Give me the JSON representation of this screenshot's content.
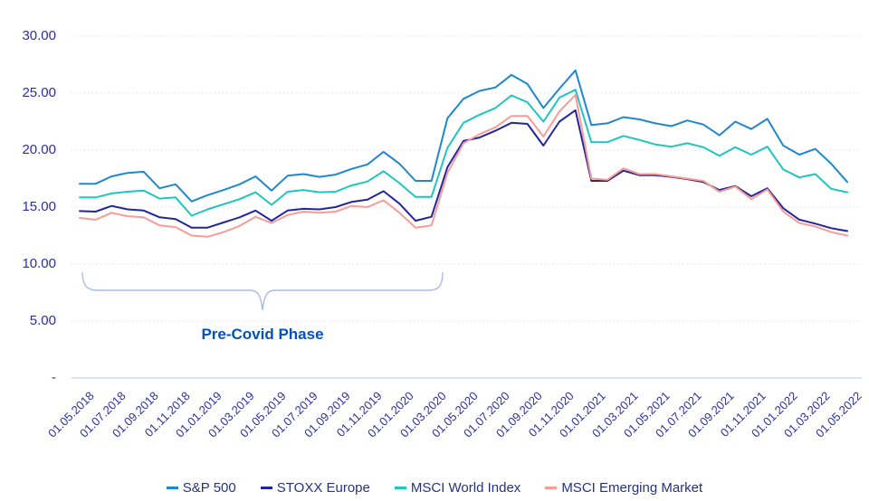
{
  "chart_data": {
    "type": "line",
    "title": "",
    "xlabel": "",
    "ylabel": "",
    "ylim": [
      0,
      30
    ],
    "grid": "horizontal-dotted",
    "legend_position": "bottom-center",
    "x_labels": [
      "01.05.2018",
      "01.07.2018",
      "01.09.2018",
      "01.11.2018",
      "01.01.2019",
      "01.03.2019",
      "01.05.2019",
      "01.07.2019",
      "01.09.2019",
      "01.11.2019",
      "01.01.2020",
      "01.03.2020",
      "01.05.2020",
      "01.07.2020",
      "01.09.2020",
      "01.11.2020",
      "01.01.2021",
      "01.03.2021",
      "01.05.2021",
      "01.07.2021",
      "01.09.2021",
      "01.11.2021",
      "01.01.2022",
      "01.03.2022",
      "01.05.2022"
    ],
    "points_per_label_interval": 2,
    "y_ticks": [
      {
        "value": 30,
        "label": "30.00"
      },
      {
        "value": 25,
        "label": "25.00"
      },
      {
        "value": 20,
        "label": "20.00"
      },
      {
        "value": 15,
        "label": "15.00"
      },
      {
        "value": 10,
        "label": "10.00"
      },
      {
        "value": 5,
        "label": "5.00"
      },
      {
        "value": 0,
        "label": "-"
      }
    ],
    "series": [
      {
        "name": "S&P 500",
        "color": "#1E88CE",
        "values": [
          17.05,
          17.05,
          17.7,
          18.0,
          18.1,
          16.65,
          17.0,
          15.5,
          16.05,
          16.5,
          17.0,
          17.7,
          16.45,
          17.75,
          17.9,
          17.65,
          17.85,
          18.35,
          18.75,
          19.85,
          18.8,
          17.3,
          17.3,
          22.8,
          24.5,
          25.2,
          25.5,
          26.6,
          25.8,
          23.7,
          25.4,
          27.0,
          22.2,
          22.35,
          22.9,
          22.7,
          22.35,
          22.1,
          22.6,
          22.25,
          21.3,
          22.5,
          21.85,
          22.75,
          20.4,
          19.6,
          20.1,
          18.8,
          17.2
        ]
      },
      {
        "name": "STOXX Europe",
        "color": "#23269B",
        "values": [
          14.65,
          14.6,
          15.1,
          14.8,
          14.7,
          14.1,
          13.95,
          13.2,
          13.2,
          13.65,
          14.1,
          14.7,
          13.8,
          14.7,
          14.85,
          14.8,
          15.0,
          15.45,
          15.65,
          16.4,
          15.3,
          13.8,
          14.15,
          18.5,
          20.8,
          21.1,
          21.7,
          22.4,
          22.3,
          20.4,
          22.5,
          23.5,
          17.3,
          17.3,
          18.2,
          17.8,
          17.8,
          17.65,
          17.45,
          17.2,
          16.5,
          16.85,
          15.95,
          16.65,
          14.9,
          13.9,
          13.55,
          13.15,
          12.9
        ]
      },
      {
        "name": "MSCI World Index",
        "color": "#1EC6BE",
        "values": [
          15.85,
          15.85,
          16.2,
          16.35,
          16.45,
          15.75,
          15.85,
          14.25,
          14.8,
          15.25,
          15.7,
          16.3,
          15.2,
          16.35,
          16.5,
          16.3,
          16.35,
          16.9,
          17.25,
          18.15,
          17.1,
          15.9,
          15.9,
          20.2,
          22.4,
          23.1,
          23.7,
          24.8,
          24.2,
          22.5,
          24.6,
          25.3,
          20.7,
          20.7,
          21.25,
          20.9,
          20.5,
          20.3,
          20.6,
          20.25,
          19.5,
          20.25,
          19.6,
          20.3,
          18.3,
          17.6,
          17.9,
          16.6,
          16.3
        ]
      },
      {
        "name": "MSCI Emerging Market",
        "color": "#F99C97",
        "values": [
          14.05,
          13.9,
          14.5,
          14.2,
          14.1,
          13.4,
          13.25,
          12.5,
          12.4,
          12.8,
          13.35,
          14.15,
          13.6,
          14.3,
          14.6,
          14.5,
          14.6,
          15.1,
          15.0,
          15.6,
          14.5,
          13.2,
          13.4,
          18.0,
          20.6,
          21.4,
          22.0,
          23.0,
          23.0,
          21.2,
          23.4,
          24.85,
          17.5,
          17.4,
          18.4,
          17.9,
          17.9,
          17.7,
          17.5,
          17.3,
          16.35,
          16.8,
          15.7,
          16.55,
          14.6,
          13.6,
          13.3,
          12.8,
          12.5
        ]
      }
    ],
    "annotation": {
      "label": "Pre-Covid Phase",
      "span_start_label": "01.05.2018",
      "span_end_label": "01.03.2020"
    },
    "colors": {
      "axis_text": "#2D2FA2",
      "legend_text": "#26337F",
      "gridline": "#DCE0F5",
      "axis_line": "#C5D0ED",
      "brace": "#A8BCE8",
      "annotation_text": "#0052BE"
    }
  }
}
